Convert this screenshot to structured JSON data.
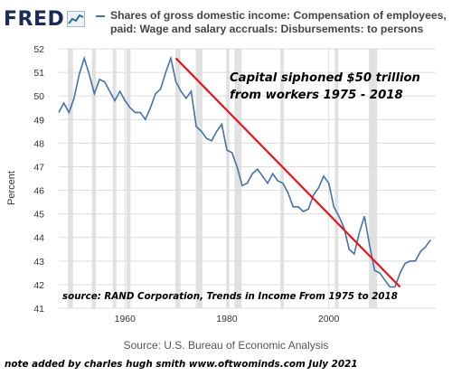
{
  "header": {
    "logo": "FRED",
    "legend_line1": "Shares of gross domestic income: Compensation of employees,",
    "legend_line2": "paid: Wage and salary accruals: Disbursements: to persons"
  },
  "annotations": {
    "main_line1": "Capital siphoned $50 trillion",
    "main_line2": "from workers 1975 - 2018",
    "source_note": "source: RAND Corporation, Trends in Income From 1975 to 2018"
  },
  "footer": {
    "source": "Source: U.S. Bureau of Economic Analysis",
    "note": "note added by charles hugh smith  www.oftwominds.com   July 2021"
  },
  "colors": {
    "series": "#4572a7",
    "trend": "#e8141b",
    "recession": "#e1e1e1",
    "grid": "#dcdcdc"
  },
  "chart_data": {
    "type": "line",
    "ylabel": "Percent",
    "xlabel": "",
    "xlim": [
      1947,
      2021
    ],
    "ylim": [
      41,
      52
    ],
    "xticks": [
      1960,
      1980,
      2000
    ],
    "yticks": [
      41,
      42,
      43,
      44,
      45,
      46,
      47,
      48,
      49,
      50,
      51,
      52
    ],
    "grid": true,
    "series": [
      {
        "name": "Shares of gross domestic income: Compensation of employees, paid: Wage and salary accruals: Disbursements: to persons",
        "x": [
          1947,
          1948,
          1949,
          1950,
          1951,
          1952,
          1953,
          1954,
          1955,
          1956,
          1957,
          1958,
          1959,
          1960,
          1961,
          1962,
          1963,
          1964,
          1965,
          1966,
          1967,
          1968,
          1969,
          1970,
          1971,
          1972,
          1973,
          1974,
          1975,
          1976,
          1977,
          1978,
          1979,
          1980,
          1981,
          1982,
          1983,
          1984,
          1985,
          1986,
          1987,
          1988,
          1989,
          1990,
          1991,
          1992,
          1993,
          1994,
          1995,
          1996,
          1997,
          1998,
          1999,
          2000,
          2001,
          2002,
          2003,
          2004,
          2005,
          2006,
          2007,
          2008,
          2009,
          2010,
          2011,
          2012,
          2013,
          2014,
          2015,
          2016,
          2017,
          2018,
          2019,
          2020
        ],
        "y": [
          49.3,
          49.7,
          49.3,
          49.9,
          50.9,
          51.6,
          50.9,
          50.1,
          50.7,
          50.6,
          50.2,
          49.8,
          50.2,
          49.8,
          49.5,
          49.3,
          49.3,
          49.0,
          49.5,
          50.1,
          50.3,
          51.0,
          51.6,
          50.6,
          50.2,
          49.9,
          50.2,
          48.7,
          48.5,
          48.2,
          48.1,
          48.5,
          48.8,
          47.7,
          47.6,
          47.0,
          46.2,
          46.3,
          46.7,
          46.9,
          46.6,
          46.3,
          46.7,
          46.4,
          46.3,
          45.9,
          45.3,
          45.3,
          45.1,
          45.2,
          45.8,
          46.1,
          46.6,
          46.3,
          45.3,
          44.9,
          44.4,
          43.5,
          43.3,
          44.2,
          44.9,
          43.7,
          42.6,
          42.5,
          42.2,
          41.9,
          41.9,
          42.5,
          42.9,
          43.0,
          43.0,
          43.4,
          43.6,
          43.9
        ]
      }
    ],
    "trend_line": {
      "x": [
        1970,
        2014
      ],
      "y": [
        51.6,
        41.9
      ]
    },
    "recessions": [
      [
        1948.8,
        1949.8
      ],
      [
        1953.5,
        1954.3
      ],
      [
        1957.6,
        1958.3
      ],
      [
        1960.3,
        1961.1
      ],
      [
        1969.9,
        1970.9
      ],
      [
        1973.9,
        1975.2
      ],
      [
        1980.0,
        1980.5
      ],
      [
        1981.5,
        1982.9
      ],
      [
        1990.5,
        1991.2
      ],
      [
        2001.2,
        2001.9
      ],
      [
        2007.9,
        2009.5
      ]
    ]
  }
}
